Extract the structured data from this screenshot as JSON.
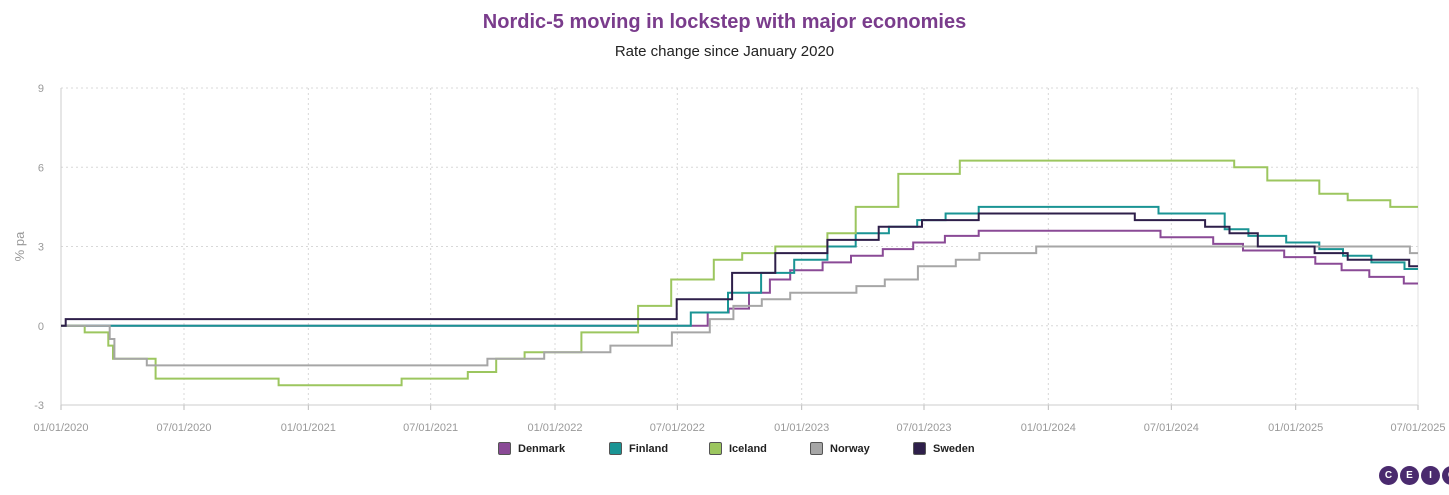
{
  "colors": {
    "title": "#7a3c8c",
    "grid": "#d8d8d8",
    "axis_text": "#999999"
  },
  "logo": {
    "letters": [
      "C",
      "E",
      "I",
      "C"
    ],
    "color": "#4a2a6e"
  },
  "chart_data": {
    "type": "line",
    "title": "Nordic-5 moving in lockstep with major economies",
    "subtitle": "Rate change since January 2020",
    "ylabel": "% pa",
    "xlabel": "",
    "ylim": [
      -3,
      9
    ],
    "yticks": [
      -3,
      0,
      3,
      6,
      9
    ],
    "xlim": [
      "2020-01-01",
      "2025-07-01"
    ],
    "xticks": [
      "2020-01-01",
      "2020-07-01",
      "2021-01-01",
      "2021-07-01",
      "2022-01-01",
      "2022-07-01",
      "2023-01-01",
      "2023-07-01",
      "2024-01-01",
      "2024-07-01",
      "2025-01-01",
      "2025-07-01"
    ],
    "xtick_labels": [
      "01/01/2020",
      "07/01/2020",
      "01/01/2021",
      "07/01/2021",
      "01/01/2022",
      "07/01/2022",
      "01/01/2023",
      "07/01/2023",
      "01/01/2024",
      "07/01/2024",
      "01/01/2025",
      "07/01/2025"
    ],
    "grid": true,
    "legend_position": "bottom-center",
    "step": true,
    "series": [
      {
        "name": "Denmark",
        "color": "#8a4a96",
        "points": [
          [
            "2020-01-01",
            0
          ],
          [
            "2022-07-15",
            0
          ],
          [
            "2022-08-15",
            0.5
          ],
          [
            "2022-09-15",
            0.65
          ],
          [
            "2022-10-15",
            1.25
          ],
          [
            "2022-11-15",
            1.75
          ],
          [
            "2022-12-15",
            2.1
          ],
          [
            "2023-02-01",
            2.4
          ],
          [
            "2023-03-15",
            2.65
          ],
          [
            "2023-05-01",
            2.9
          ],
          [
            "2023-06-15",
            3.15
          ],
          [
            "2023-08-01",
            3.4
          ],
          [
            "2023-09-20",
            3.6
          ],
          [
            "2024-06-15",
            3.35
          ],
          [
            "2024-09-01",
            3.1
          ],
          [
            "2024-10-15",
            2.85
          ],
          [
            "2024-12-15",
            2.6
          ],
          [
            "2025-01-30",
            2.35
          ],
          [
            "2025-03-10",
            2.1
          ],
          [
            "2025-04-20",
            1.85
          ],
          [
            "2025-06-10",
            1.6
          ],
          [
            "2025-07-01",
            1.6
          ]
        ]
      },
      {
        "name": "Finland",
        "color": "#1a9494",
        "points": [
          [
            "2020-01-01",
            0
          ],
          [
            "2022-07-21",
            0.5
          ],
          [
            "2022-09-14",
            1.25
          ],
          [
            "2022-11-02",
            2.0
          ],
          [
            "2022-12-21",
            2.5
          ],
          [
            "2023-02-08",
            3.0
          ],
          [
            "2023-03-22",
            3.5
          ],
          [
            "2023-05-10",
            3.75
          ],
          [
            "2023-06-21",
            4.0
          ],
          [
            "2023-08-02",
            4.25
          ],
          [
            "2023-09-20",
            4.5
          ],
          [
            "2024-06-12",
            4.25
          ],
          [
            "2024-09-18",
            3.65
          ],
          [
            "2024-10-23",
            3.4
          ],
          [
            "2024-12-18",
            3.15
          ],
          [
            "2025-02-05",
            2.9
          ],
          [
            "2025-03-12",
            2.65
          ],
          [
            "2025-04-23",
            2.4
          ],
          [
            "2025-06-11",
            2.15
          ],
          [
            "2025-07-01",
            2.15
          ]
        ]
      },
      {
        "name": "Iceland",
        "color": "#9cc65f",
        "points": [
          [
            "2020-01-01",
            0
          ],
          [
            "2020-02-05",
            -0.25
          ],
          [
            "2020-03-11",
            -0.75
          ],
          [
            "2020-03-18",
            -1.25
          ],
          [
            "2020-05-20",
            -2.0
          ],
          [
            "2020-11-18",
            -2.25
          ],
          [
            "2021-05-19",
            -2.0
          ],
          [
            "2021-08-25",
            -1.75
          ],
          [
            "2021-10-06",
            -1.25
          ],
          [
            "2021-11-17",
            -1.0
          ],
          [
            "2022-02-09",
            -0.25
          ],
          [
            "2022-05-04",
            0.75
          ],
          [
            "2022-06-22",
            1.75
          ],
          [
            "2022-08-24",
            2.5
          ],
          [
            "2022-10-05",
            2.75
          ],
          [
            "2022-11-23",
            3.0
          ],
          [
            "2023-02-08",
            3.5
          ],
          [
            "2023-03-22",
            4.5
          ],
          [
            "2023-05-24",
            5.75
          ],
          [
            "2023-08-23",
            6.25
          ],
          [
            "2024-10-02",
            6.0
          ],
          [
            "2024-11-20",
            5.5
          ],
          [
            "2025-02-05",
            5.0
          ],
          [
            "2025-03-19",
            4.75
          ],
          [
            "2025-05-21",
            4.5
          ],
          [
            "2025-07-01",
            4.5
          ]
        ]
      },
      {
        "name": "Norway",
        "color": "#a6a6a6",
        "points": [
          [
            "2020-01-01",
            0
          ],
          [
            "2020-03-13",
            -0.5
          ],
          [
            "2020-03-20",
            -1.25
          ],
          [
            "2020-05-07",
            -1.5
          ],
          [
            "2021-09-23",
            -1.25
          ],
          [
            "2021-12-16",
            -1.0
          ],
          [
            "2022-03-24",
            -0.75
          ],
          [
            "2022-06-23",
            -0.25
          ],
          [
            "2022-08-18",
            0.25
          ],
          [
            "2022-09-22",
            0.75
          ],
          [
            "2022-11-03",
            1.0
          ],
          [
            "2022-12-15",
            1.25
          ],
          [
            "2023-03-23",
            1.5
          ],
          [
            "2023-05-04",
            1.75
          ],
          [
            "2023-06-22",
            2.25
          ],
          [
            "2023-08-17",
            2.5
          ],
          [
            "2023-09-21",
            2.75
          ],
          [
            "2023-12-14",
            3.0
          ],
          [
            "2025-06-19",
            2.75
          ],
          [
            "2025-07-01",
            2.75
          ]
        ]
      },
      {
        "name": "Sweden",
        "color": "#2e1f4a",
        "points": [
          [
            "2020-01-01",
            0
          ],
          [
            "2020-01-08",
            0.25
          ],
          [
            "2022-04-28",
            0.25
          ],
          [
            "2022-06-30",
            1.0
          ],
          [
            "2022-09-20",
            2.0
          ],
          [
            "2022-11-23",
            2.75
          ],
          [
            "2023-02-08",
            3.25
          ],
          [
            "2023-04-25",
            3.75
          ],
          [
            "2023-06-28",
            4.0
          ],
          [
            "2023-09-20",
            4.25
          ],
          [
            "2024-05-08",
            4.0
          ],
          [
            "2024-08-20",
            3.75
          ],
          [
            "2024-09-25",
            3.5
          ],
          [
            "2024-11-06",
            3.0
          ],
          [
            "2025-01-29",
            2.75
          ],
          [
            "2025-03-19",
            2.5
          ],
          [
            "2025-06-18",
            2.25
          ],
          [
            "2025-07-01",
            2.25
          ]
        ]
      }
    ]
  }
}
